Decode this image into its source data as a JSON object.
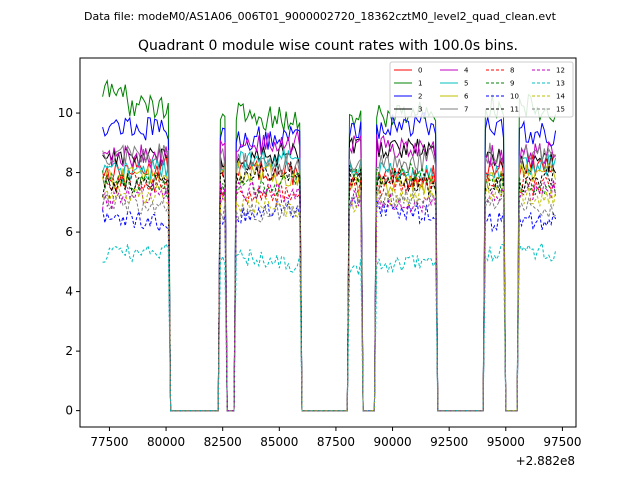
{
  "suptitle": "Data file: modeM0/AS1A06_006T01_9000002720_18362cztM0_level2_quad_clean.evt",
  "chart_data": {
    "type": "line",
    "title": "Quadrant 0 module wise count rates with 100.0s bins.",
    "xlabel": "",
    "ylabel": "",
    "x_offset_label": "+2.882e8",
    "x_offset": 288200000,
    "xlim": [
      76200,
      98100
    ],
    "ylim": [
      -0.55,
      11.85
    ],
    "xticks": [
      77500,
      80000,
      82500,
      85000,
      87500,
      90000,
      92500,
      95000,
      97500
    ],
    "xtick_labels": [
      "77500",
      "80000",
      "82500",
      "85000",
      "87500",
      "90000",
      "92500",
      "95000",
      "97500"
    ],
    "yticks": [
      0,
      2,
      4,
      6,
      8,
      10
    ],
    "ytick_labels": [
      "0",
      "2",
      "4",
      "6",
      "8",
      "10"
    ],
    "bin_seconds": 100,
    "active_segments": [
      {
        "start": 77200,
        "end": 80100
      },
      {
        "start": 82400,
        "end": 82600
      },
      {
        "start": 83100,
        "end": 85900
      },
      {
        "start": 88100,
        "end": 88600
      },
      {
        "start": 89300,
        "end": 91900
      },
      {
        "start": 94100,
        "end": 94900
      },
      {
        "start": 95600,
        "end": 97200
      }
    ],
    "gap_value": 0,
    "legend_position": "upper-right",
    "series": [
      {
        "name": "0",
        "level": 8.0,
        "color": "#ff0000",
        "style": "solid"
      },
      {
        "name": "1",
        "level": 10.0,
        "color": "#008000",
        "style": "solid"
      },
      {
        "name": "2",
        "level": 9.4,
        "color": "#0000ff",
        "style": "solid"
      },
      {
        "name": "3",
        "level": 8.6,
        "color": "#000000",
        "style": "solid"
      },
      {
        "name": "4",
        "level": 8.8,
        "color": "#c000c0",
        "style": "solid"
      },
      {
        "name": "5",
        "level": 8.2,
        "color": "#00bfbf",
        "style": "solid"
      },
      {
        "name": "6",
        "level": 7.8,
        "color": "#bfbf00",
        "style": "solid"
      },
      {
        "name": "7",
        "level": 8.4,
        "color": "#7f7f7f",
        "style": "solid"
      },
      {
        "name": "8",
        "level": 7.5,
        "color": "#ff0000",
        "style": "dashed"
      },
      {
        "name": "9",
        "level": 7.7,
        "color": "#008000",
        "style": "dashed"
      },
      {
        "name": "10",
        "level": 6.6,
        "color": "#0000ff",
        "style": "dashed"
      },
      {
        "name": "11",
        "level": 7.8,
        "color": "#000000",
        "style": "dashed"
      },
      {
        "name": "12",
        "level": 7.2,
        "color": "#c000c0",
        "style": "dashed"
      },
      {
        "name": "13",
        "level": 5.1,
        "color": "#00bfbf",
        "style": "dashed"
      },
      {
        "name": "14",
        "level": 7.1,
        "color": "#bfbf00",
        "style": "dashed"
      },
      {
        "name": "15",
        "level": 6.9,
        "color": "#7f7f7f",
        "style": "dashed"
      }
    ]
  }
}
